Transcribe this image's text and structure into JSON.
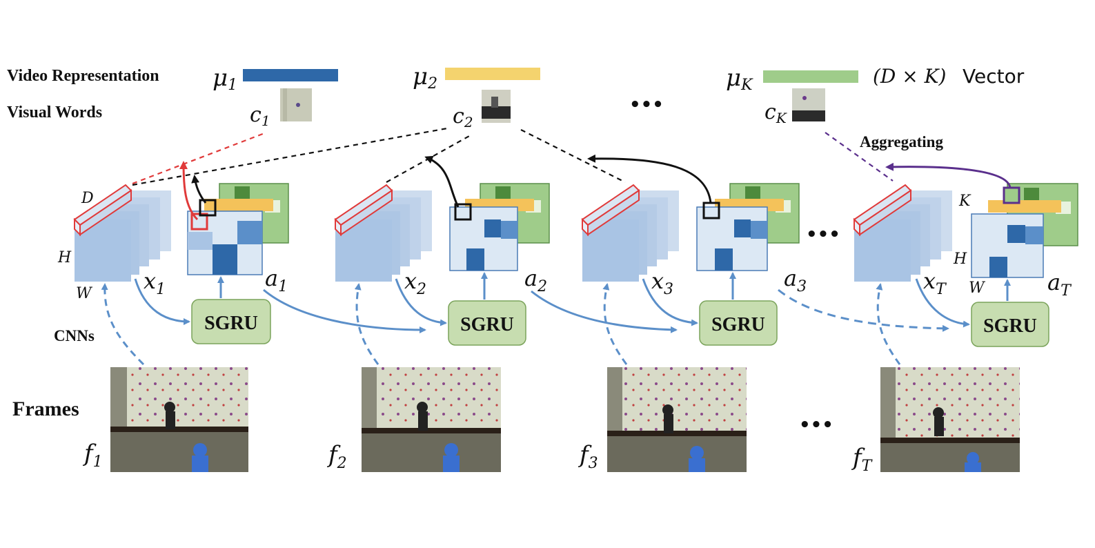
{
  "labels": {
    "video_representation": "Video Representation",
    "visual_words": "Visual Words",
    "vector_dim": "(D × K)",
    "vector_word": "Vector",
    "aggregating": "Aggregating",
    "cnns": "CNNs",
    "frames": "Frames",
    "ellipsis": "•••",
    "dim_D": "D",
    "dim_H": "H",
    "dim_W": "W",
    "dim_K": "K"
  },
  "centroids": [
    {
      "mu": "μ",
      "mu_sub": "1",
      "c": "c",
      "c_sub": "1",
      "bar_color": "#2e68a8"
    },
    {
      "mu": "μ",
      "mu_sub": "2",
      "c": "c",
      "c_sub": "2",
      "bar_color": "#f4d36e"
    },
    {
      "mu": "μ",
      "mu_sub": "K",
      "c": "c",
      "c_sub": "K",
      "bar_color": "#9fcc8a"
    }
  ],
  "steps": [
    {
      "x": "x",
      "x_sub": "1",
      "a": "a",
      "a_sub": "1",
      "f": "f",
      "f_sub": "1",
      "sgru": "SGRU"
    },
    {
      "x": "x",
      "x_sub": "2",
      "a": "a",
      "a_sub": "2",
      "f": "f",
      "f_sub": "2",
      "sgru": "SGRU"
    },
    {
      "x": "x",
      "x_sub": "3",
      "a": "a",
      "a_sub": "3",
      "f": "f",
      "f_sub": "3",
      "sgru": "SGRU"
    },
    {
      "x": "x",
      "x_sub": "T",
      "a": "a",
      "a_sub": "T",
      "f": "f",
      "f_sub": "T",
      "sgru": "SGRU"
    }
  ],
  "colors": {
    "feature_map": "#a9c4e4",
    "sgru_fill": "#c7ddb0",
    "sgru_stroke": "#7aa35a",
    "arrow_blue": "#5b8fc9",
    "red": "#e03a3a",
    "purple": "#5a2f8c",
    "black": "#111111"
  }
}
